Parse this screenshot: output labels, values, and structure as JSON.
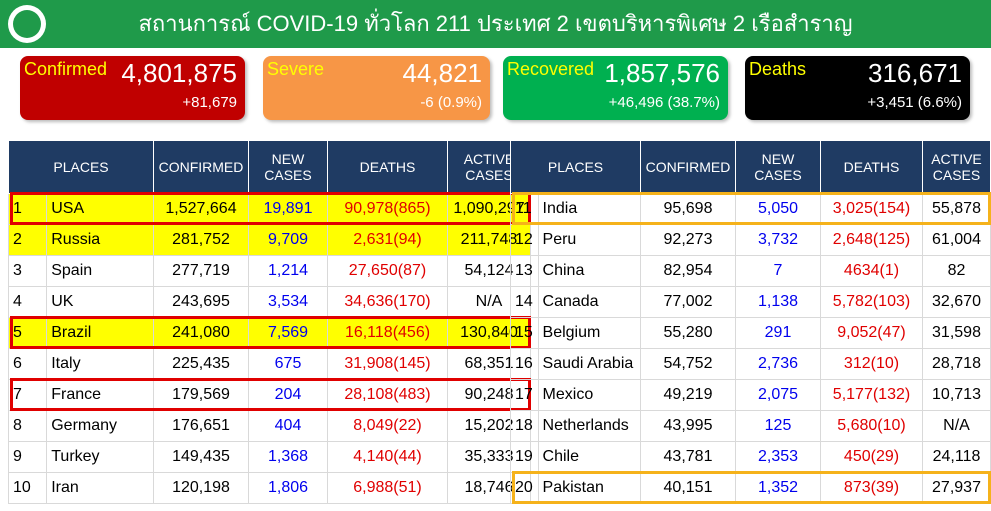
{
  "header": {
    "title": "สถานการณ์ COVID-19 ทั่วโลก 211 ประเทศ 2 เขตบริหารพิเศษ 2 เรือสำราญ"
  },
  "cards": [
    {
      "label": "Confirmed",
      "value": "4,801,875",
      "change": "+81,679"
    },
    {
      "label": "Severe",
      "value": "44,821",
      "change": "-6 (0.9%)"
    },
    {
      "label": "Recovered",
      "value": "1,857,576",
      "change": "+46,496 (38.7%)"
    },
    {
      "label": "Deaths",
      "value": "316,671",
      "change": "+3,451 (6.6%)"
    }
  ],
  "tables": [
    {
      "columns": [
        "PLACES",
        "CONFIRMED",
        "NEW CASES",
        "DEATHS",
        "ACTIVE CASES"
      ],
      "rows": [
        [
          "1",
          "USA",
          "1,527,664",
          "19,891",
          "90,978(865)",
          "1,090,297"
        ],
        [
          "2",
          "Russia",
          "281,752",
          "9,709",
          "2,631(94)",
          "211,748"
        ],
        [
          "3",
          "Spain",
          "277,719",
          "1,214",
          "27,650(87)",
          "54,124"
        ],
        [
          "4",
          "UK",
          "243,695",
          "3,534",
          "34,636(170)",
          "N/A"
        ],
        [
          "5",
          "Brazil",
          "241,080",
          "7,569",
          "16,118(456)",
          "130,840"
        ],
        [
          "6",
          "Italy",
          "225,435",
          "675",
          "31,908(145)",
          "68,351"
        ],
        [
          "7",
          "France",
          "179,569",
          "204",
          "28,108(483)",
          "90,248"
        ],
        [
          "8",
          "Germany",
          "176,651",
          "404",
          "8,049(22)",
          "15,202"
        ],
        [
          "9",
          "Turkey",
          "149,435",
          "1,368",
          "4,140(44)",
          "35,333"
        ],
        [
          "10",
          "Iran",
          "120,198",
          "1,806",
          "6,988(51)",
          "18,746"
        ]
      ]
    },
    {
      "columns": [
        "PLACES",
        "CONFIRMED",
        "NEW CASES",
        "DEATHS",
        "ACTIVE CASES"
      ],
      "rows": [
        [
          "11",
          "India",
          "95,698",
          "5,050",
          "3,025(154)",
          "55,878"
        ],
        [
          "12",
          "Peru",
          "92,273",
          "3,732",
          "2,648(125)",
          "61,004"
        ],
        [
          "13",
          "China",
          "82,954",
          "7",
          "4634(1)",
          "82"
        ],
        [
          "14",
          "Canada",
          "77,002",
          "1,138",
          "5,782(103)",
          "32,670"
        ],
        [
          "15",
          "Belgium",
          "55,280",
          "291",
          "9,052(47)",
          "31,598"
        ],
        [
          "16",
          "Saudi Arabia",
          "54,752",
          "2,736",
          "312(10)",
          "28,718"
        ],
        [
          "17",
          "Mexico",
          "49,219",
          "2,075",
          "5,177(132)",
          "10,713"
        ],
        [
          "18",
          "Netherlands",
          "43,995",
          "125",
          "5,680(10)",
          "N/A"
        ],
        [
          "19",
          "Chile",
          "43,781",
          "2,353",
          "450(29)",
          "24,118"
        ],
        [
          "20",
          "Pakistan",
          "40,151",
          "1,352",
          "873(39)",
          "27,937"
        ]
      ]
    }
  ]
}
